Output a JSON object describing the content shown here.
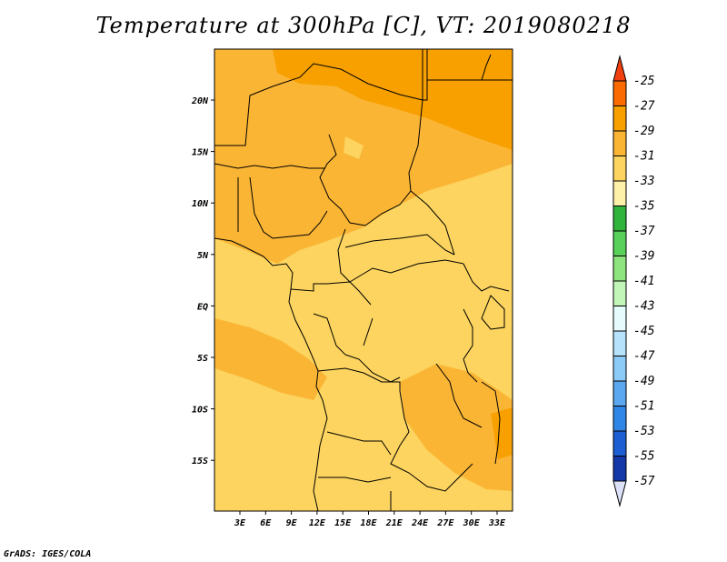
{
  "title": "Temperature at 300hPa [C], VT: 2019080218",
  "credit": "GrADS: IGES/COLA",
  "map": {
    "y_ticks": [
      "20N",
      "15N",
      "10N",
      "5N",
      "EQ",
      "5S",
      "10S",
      "15S"
    ],
    "x_ticks": [
      "3E",
      "6E",
      "9E",
      "12E",
      "15E",
      "18E",
      "21E",
      "24E",
      "27E",
      "30E",
      "33E"
    ]
  },
  "colorbar": {
    "labels": [
      "-25",
      "-27",
      "-29",
      "-31",
      "-33",
      "-35",
      "-37",
      "-39",
      "-41",
      "-43",
      "-45",
      "-47",
      "-49",
      "-51",
      "-53",
      "-55",
      "-57"
    ],
    "colors": [
      "#f04010",
      "#fa6a00",
      "#f7a000",
      "#fbb535",
      "#fcd45f",
      "#fdf0a8",
      "#31b43c",
      "#58d05a",
      "#8ee47e",
      "#c2f5b8",
      "#e6fcfc",
      "#b6e3fb",
      "#8ccaf7",
      "#5ba8f0",
      "#3086e7",
      "#1d5ed2",
      "#1438a8",
      "#0b1570"
    ],
    "top_color": "#f04010",
    "bottom_color": "#dce0f8"
  }
}
